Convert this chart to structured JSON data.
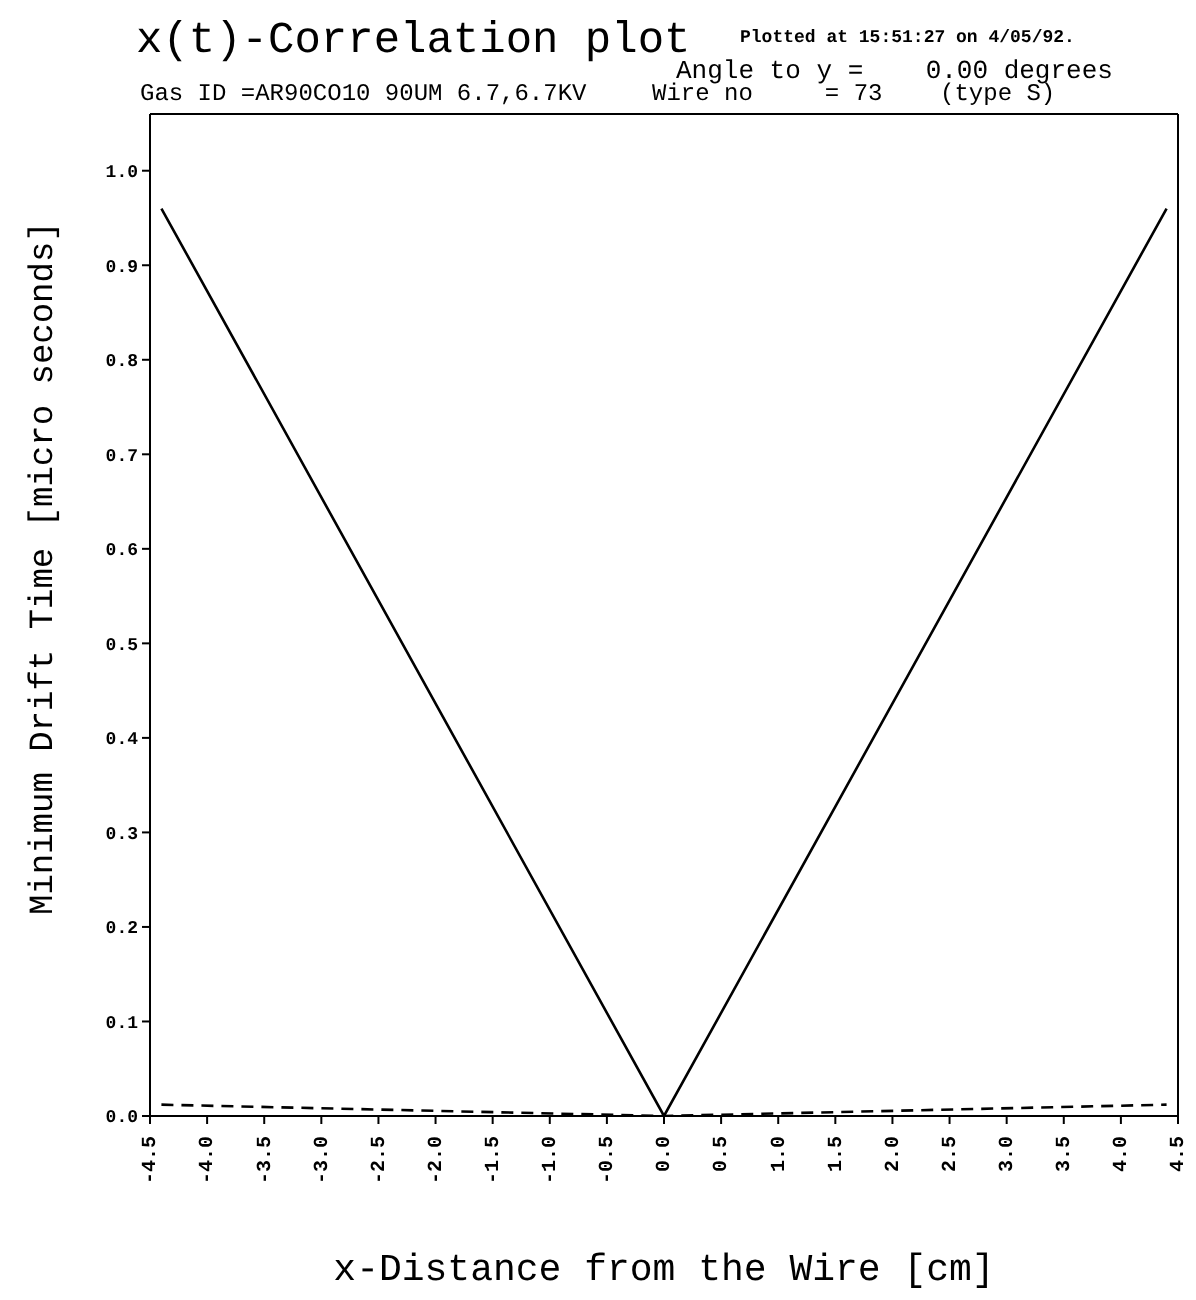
{
  "chart_data": {
    "type": "line",
    "title": "x(t)-Correlation plot",
    "annotations": [
      "Plotted at 15:51:27 on 4/05/92.",
      "Angle to y =    0.00 degrees",
      "Gas ID =AR90CO10 90UM 6.7,6.7KV",
      "Wire no     = 73    (type S)"
    ],
    "xlabel": "x-Distance from the Wire [cm]",
    "ylabel": "Minimum Drift Time [micro seconds]",
    "series": [
      {
        "color": "#000000",
        "line_style": "solid",
        "x": [
          -4.4,
          0,
          4.4
        ],
        "values": [
          0.96,
          0,
          0.96
        ]
      },
      {
        "color": "#000000",
        "line_style": "dashed",
        "x": [
          -4.4,
          0,
          4.4
        ],
        "values": [
          0.012,
          0,
          0.012
        ]
      }
    ],
    "xlim": [
      -4.5,
      4.5
    ],
    "xticks": [
      -4.5,
      {
        "value": -4,
        "label": "-4.0"
      },
      -3.5,
      {
        "value": -3,
        "label": "-3.0"
      },
      -2.5,
      {
        "value": -2,
        "label": "-2.0"
      },
      -1.5,
      {
        "value": -1,
        "label": "-1.0"
      },
      -0.5,
      {
        "value": 0,
        "label": "0.0"
      },
      0.5,
      {
        "value": 1,
        "label": "1.0"
      },
      1.5,
      {
        "value": 2,
        "label": "2.0"
      },
      2.5,
      {
        "value": 3,
        "label": "3.0"
      },
      3.5,
      {
        "value": 4,
        "label": "4.0"
      },
      4.5
    ],
    "ylim": [
      0,
      1.06
    ],
    "yticks": [
      {
        "value": 0,
        "label": "0.0"
      },
      0.1,
      0.2,
      0.3,
      0.4,
      0.5,
      0.6,
      0.7,
      0.8,
      0.9,
      {
        "value": 1,
        "label": "1.0"
      }
    ],
    "marker": "none",
    "grid": false,
    "legend": false
  }
}
